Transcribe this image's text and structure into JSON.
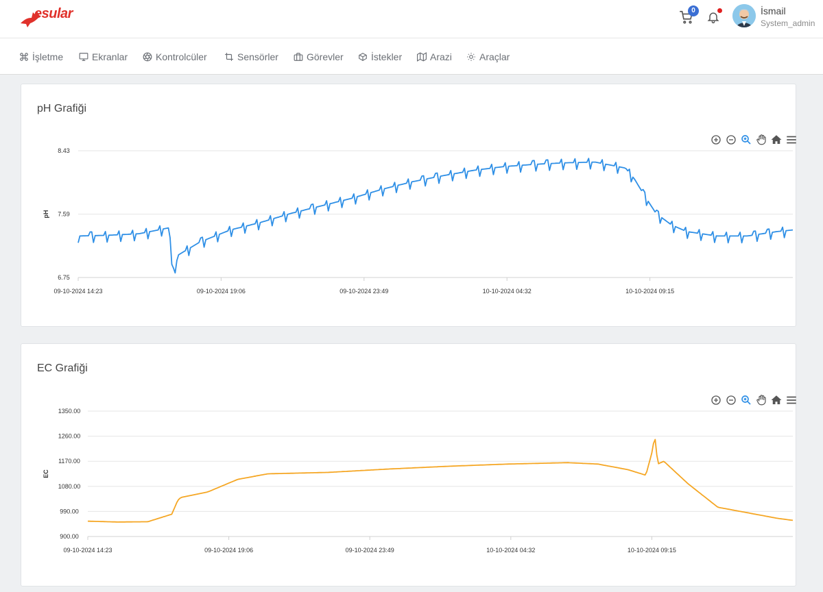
{
  "app": {
    "logo_text": "esular"
  },
  "header": {
    "cart_count": "0",
    "user_name": "İsmail",
    "user_role": "System_admin"
  },
  "nav": {
    "items": [
      {
        "label": "İşletme",
        "icon": "command-icon"
      },
      {
        "label": "Ekranlar",
        "icon": "monitor-icon"
      },
      {
        "label": "Kontrolcüler",
        "icon": "aperture-icon"
      },
      {
        "label": "Sensörler",
        "icon": "crop-icon"
      },
      {
        "label": "Görevler",
        "icon": "briefcase-icon"
      },
      {
        "label": "İstekler",
        "icon": "box-icon"
      },
      {
        "label": "Arazi",
        "icon": "map-icon"
      },
      {
        "label": "Araçlar",
        "icon": "sun-icon"
      }
    ]
  },
  "colors": {
    "ph_line": "#2e8fe6",
    "ec_line": "#f5a623",
    "badge": "#3b6fd4",
    "accent": "#e0312b"
  },
  "charts": {
    "ph": {
      "title": "pH Grafiği"
    },
    "ec": {
      "title": "EC Grafiği"
    }
  },
  "chart_data": [
    {
      "type": "line",
      "title": "pH Grafiği",
      "ylabel": "pH",
      "xlabel": "",
      "ylim": [
        6.75,
        8.43
      ],
      "yticks": [
        "6.75",
        "7.59",
        "8.43"
      ],
      "xticks": [
        "09-10-2024 14:23",
        "09-10-2024 19:06",
        "09-10-2024 23:49",
        "10-10-2024 04:32",
        "10-10-2024 09:15"
      ],
      "x_hours": [
        0,
        1,
        2,
        3,
        3.05,
        3.1,
        3.3,
        4,
        5,
        6,
        7,
        8,
        9,
        10,
        11,
        12,
        13,
        14,
        15,
        16,
        17,
        18,
        18.3,
        18.6,
        19,
        19.5,
        20,
        21,
        22,
        23,
        23.5
      ],
      "y": [
        7.3,
        7.31,
        7.33,
        7.41,
        7.1,
        6.78,
        7.05,
        7.22,
        7.38,
        7.48,
        7.6,
        7.7,
        7.8,
        7.92,
        8.02,
        8.1,
        8.17,
        8.22,
        8.25,
        8.27,
        8.28,
        8.2,
        8.05,
        7.85,
        7.6,
        7.45,
        7.36,
        7.3,
        7.3,
        7.36,
        7.38
      ],
      "series": [
        {
          "name": "pH",
          "color": "#2e8fe6"
        }
      ],
      "grid": true
    },
    {
      "type": "line",
      "title": "EC Grafiği",
      "ylabel": "EC",
      "xlabel": "",
      "ylim": [
        900,
        1350
      ],
      "yticks": [
        "900.00",
        "990.00",
        "1080.00",
        "1170.00",
        "1260.00",
        "1350.00"
      ],
      "xticks": [
        "09-10-2024 14:23",
        "09-10-2024 19:06",
        "09-10-2024 23:49",
        "10-10-2024 04:32",
        "10-10-2024 09:15"
      ],
      "x_hours": [
        0,
        1,
        2,
        2.8,
        3.0,
        3.1,
        4,
        5,
        6,
        8,
        10,
        12,
        14,
        16,
        17,
        18,
        18.6,
        18.8,
        18.9,
        19.0,
        19.2,
        19.5,
        20.0,
        21,
        22,
        23,
        23.5
      ],
      "y": [
        955,
        952,
        953,
        980,
        1030,
        1040,
        1060,
        1105,
        1125,
        1130,
        1142,
        1152,
        1160,
        1165,
        1160,
        1140,
        1120,
        1200,
        1260,
        1160,
        1170,
        1140,
        1090,
        1005,
        985,
        965,
        958
      ],
      "series": [
        {
          "name": "EC",
          "color": "#f5a623"
        }
      ],
      "grid": true
    }
  ]
}
